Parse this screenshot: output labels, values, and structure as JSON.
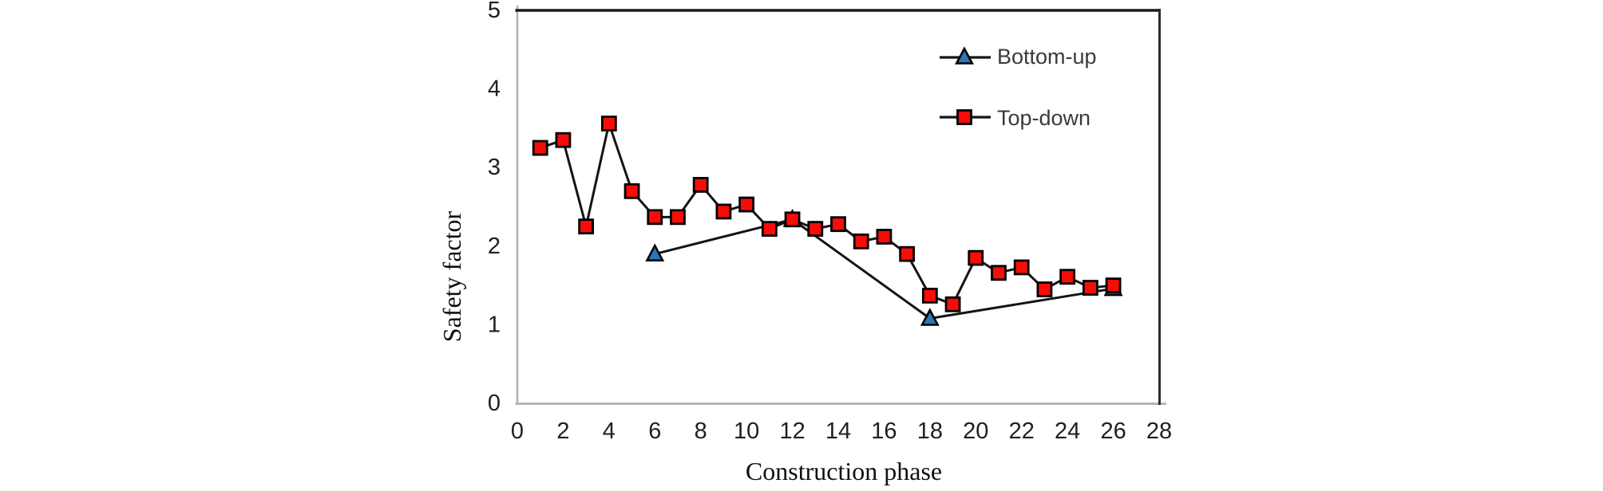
{
  "chart_data": {
    "type": "line",
    "title": "",
    "xlabel": "Construction phase",
    "ylabel": "Safety factor",
    "xlim": [
      0,
      28
    ],
    "ylim": [
      0,
      5
    ],
    "x_ticks": [
      0,
      2,
      4,
      6,
      8,
      10,
      12,
      14,
      16,
      18,
      20,
      22,
      24,
      26,
      28
    ],
    "y_ticks": [
      0,
      1,
      2,
      3,
      4,
      5
    ],
    "grid": false,
    "legend_position": "top-right-inside",
    "series": [
      {
        "name": "Bottom-up",
        "marker": "triangle",
        "marker_color": "#2e75b6",
        "marker_edge_color": "#000000",
        "line_color": "#141414",
        "x": [
          6,
          12,
          18,
          26
        ],
        "y": [
          1.9,
          2.34,
          1.08,
          1.46
        ]
      },
      {
        "name": "Top-down",
        "marker": "square",
        "marker_color": "#f60d09",
        "marker_edge_color": "#000000",
        "line_color": "#141414",
        "x": [
          1,
          2,
          3,
          4,
          5,
          6,
          7,
          8,
          9,
          10,
          11,
          12,
          13,
          14,
          15,
          16,
          17,
          18,
          19,
          20,
          21,
          22,
          23,
          24,
          25,
          26
        ],
        "y": [
          3.25,
          3.35,
          2.25,
          3.56,
          2.7,
          2.37,
          2.37,
          2.78,
          2.44,
          2.53,
          2.22,
          2.34,
          2.22,
          2.28,
          2.06,
          2.12,
          1.9,
          1.37,
          1.26,
          1.85,
          1.66,
          1.73,
          1.45,
          1.61,
          1.47,
          1.5
        ]
      }
    ],
    "frame_colors": {
      "top": "#1a1a1a",
      "right": "#2b2b2b",
      "left": "#b0b0b0",
      "bottom": "#b5b5b5"
    },
    "background": "#ffffff"
  }
}
